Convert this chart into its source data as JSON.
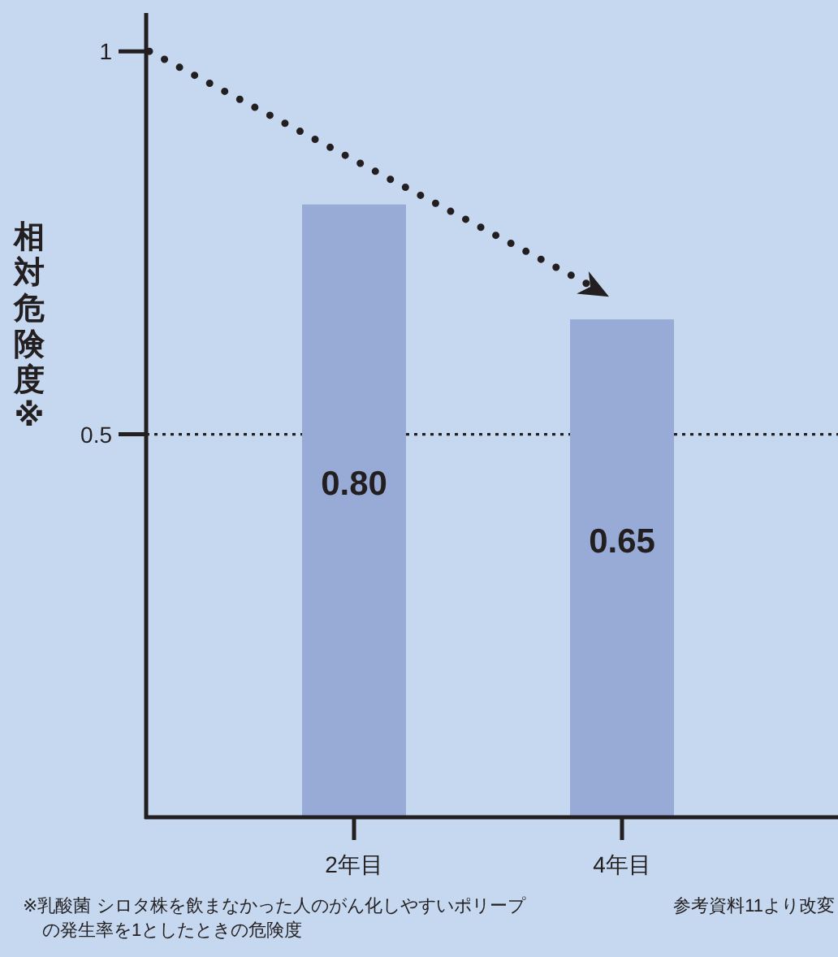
{
  "chart_data": {
    "type": "bar",
    "ylabel": "相対危険度※",
    "categories": [
      "2年目",
      "4年目"
    ],
    "values": [
      0.8,
      0.65
    ],
    "value_labels": [
      "0.80",
      "0.65"
    ],
    "color": "#97abd6",
    "ylim": [
      0,
      1.05
    ],
    "yticks": [
      0.5,
      1
    ],
    "ref_lines": [
      {
        "axis": "y",
        "value": 0.5,
        "line_style": "dotted",
        "color": "#231f20"
      }
    ],
    "annotations": [
      "※乳酸菌 シロタ株を飲まなかった人のがん化しやすいポリープの発生率を1としたときの危険度",
      "参考資料11より改変"
    ]
  }
}
